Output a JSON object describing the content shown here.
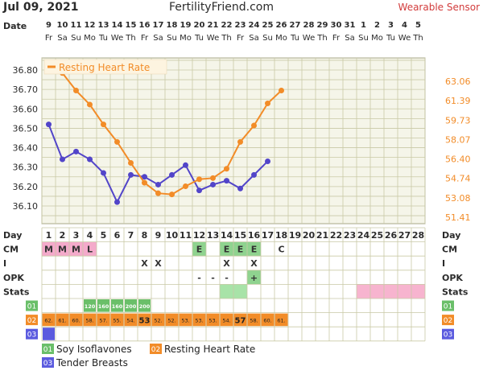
{
  "header": {
    "date": "Jul 09, 2021",
    "site": "FertilityFriend.com",
    "badge": "Wearable Sensor"
  },
  "row_labels": {
    "date": "Date",
    "day": "Day",
    "day_right": "Day",
    "cm": "CM",
    "i": "I",
    "opk": "OPK",
    "stats": "Stats"
  },
  "dates": [
    "9",
    "10",
    "11",
    "12",
    "13",
    "14",
    "15",
    "16",
    "17",
    "18",
    "19",
    "20",
    "21",
    "22",
    "23",
    "24",
    "25",
    "26",
    "27",
    "28",
    "29",
    "30",
    "31",
    "1",
    "2",
    "3",
    "4",
    "5"
  ],
  "weekdays": [
    "Fr",
    "Sa",
    "Su",
    "Mo",
    "Tu",
    "We",
    "Th",
    "Fr",
    "Sa",
    "Su",
    "Mo",
    "Tu",
    "We",
    "Th",
    "Fr",
    "Sa",
    "Su",
    "Mo",
    "Tu",
    "We",
    "Th",
    "Fr",
    "Sa",
    "Su",
    "Mo",
    "Tu",
    "We",
    "Th"
  ],
  "days": [
    "1",
    "2",
    "3",
    "4",
    "5",
    "6",
    "7",
    "8",
    "9",
    "10",
    "11",
    "12",
    "13",
    "14",
    "15",
    "16",
    "17",
    "18",
    "19",
    "20",
    "21",
    "22",
    "23",
    "24",
    "25",
    "26",
    "27",
    "28"
  ],
  "cm": [
    "M",
    "M",
    "M",
    "L",
    "",
    "",
    "",
    "",
    "",
    "",
    "",
    "E",
    "",
    "E",
    "E",
    "E",
    "",
    "C",
    "",
    "",
    "",
    "",
    "",
    "",
    "",
    "",
    "",
    ""
  ],
  "intercourse": [
    "",
    "",
    "",
    "",
    "",
    "",
    "",
    "X",
    "X",
    "",
    "",
    "",
    "",
    "X",
    "",
    "X",
    "",
    "",
    "",
    "",
    "",
    "",
    "",
    "",
    "",
    "",
    "",
    ""
  ],
  "opk": [
    "",
    "",
    "",
    "",
    "",
    "",
    "",
    "",
    "",
    "",
    "",
    "-",
    "-",
    "-",
    "",
    "+",
    "",
    "",
    "",
    "",
    "",
    "",
    "",
    "",
    "",
    "",
    "",
    ""
  ],
  "stats": {
    "green_days": [
      14,
      15
    ],
    "pink_days": [
      24,
      25,
      26,
      27,
      28
    ]
  },
  "colors": {
    "grid_bg": "#f5f5e9",
    "grid_line": "#c9c9a6",
    "temp": "#5245c9",
    "rhr": "#f28c28",
    "cm_m": "#f4aacb",
    "cm_e": "#8fd38f",
    "green_cell": "#6abf69",
    "orange_cell": "#f28c28",
    "blue_cell": "#5b5bdf",
    "pink_cell": "#f7b4cf",
    "light_green": "#a8e3a8"
  },
  "tracks": {
    "t1": {
      "label": "01",
      "values": [
        "",
        "",
        "",
        "120",
        "160",
        "160",
        "200",
        "200",
        "",
        "",
        "",
        "",
        "",
        "",
        "",
        "",
        "",
        "",
        "",
        "",
        "",
        "",
        "",
        "",
        "",
        "",
        "",
        ""
      ]
    },
    "t2": {
      "label": "02",
      "values": [
        "62.",
        "61.",
        "60.",
        "58.",
        "57.",
        "55.",
        "54.",
        "53",
        "52.",
        "52.",
        "53.",
        "53.",
        "53.",
        "54.",
        "57",
        "58.",
        "60.",
        "61.",
        "",
        "",
        "",
        "",
        "",
        "",
        "",
        "",
        "",
        ""
      ]
    },
    "t3": {
      "label": "03",
      "values_marked": [
        1
      ]
    }
  },
  "legend": [
    {
      "num": "01",
      "label": "Soy Isoflavones"
    },
    {
      "num": "02",
      "label": "Resting Heart Rate"
    },
    {
      "num": "03",
      "label": "Tender Breasts"
    }
  ],
  "chart_data": {
    "type": "line",
    "x": [
      1,
      2,
      3,
      4,
      5,
      6,
      7,
      8,
      9,
      10,
      11,
      12,
      13,
      14,
      15,
      16,
      17,
      18
    ],
    "left_axis_ticks": [
      "36.80",
      "36.70",
      "36.60",
      "36.50",
      "36.40",
      "36.30",
      "36.20",
      "36.10"
    ],
    "right_axis_ticks": [
      "63.06",
      "61.39",
      "59.73",
      "58.07",
      "56.40",
      "54.74",
      "53.08",
      "51.41"
    ],
    "ylim_left": [
      36.0,
      36.85
    ],
    "ylim_right": [
      50.42,
      64.06
    ],
    "series": [
      {
        "name": "",
        "axis": "left",
        "values": [
          36.52,
          36.34,
          36.38,
          36.34,
          36.27,
          36.12,
          36.26,
          36.25,
          36.21,
          36.26,
          36.31,
          36.18,
          36.21,
          36.23,
          36.19,
          36.26,
          36.33,
          null
        ]
      },
      {
        "name": "Resting Heart Rate",
        "axis": "right",
        "values": [
          null,
          62.8,
          61.3,
          60.1,
          58.4,
          56.9,
          55.1,
          53.4,
          52.5,
          52.4,
          53.1,
          53.7,
          53.8,
          54.6,
          56.9,
          58.3,
          60.2,
          61.3
        ]
      }
    ],
    "legend_position": "top-left"
  }
}
